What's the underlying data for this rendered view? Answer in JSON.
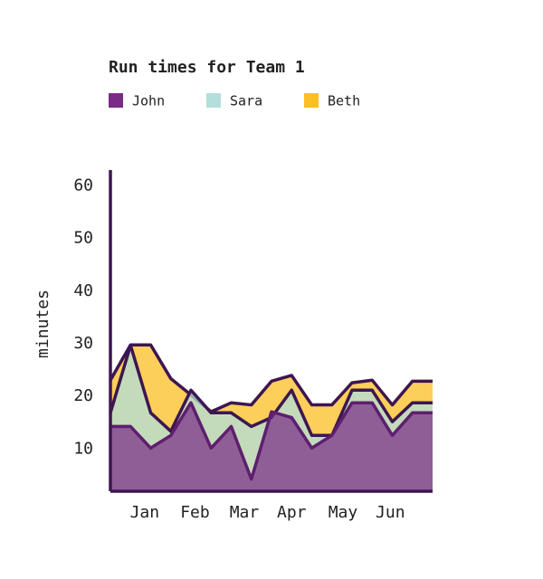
{
  "chart_data": {
    "type": "area",
    "title": "Run times for Team 1",
    "ylabel": "minutes",
    "x": [
      0,
      1,
      2,
      3,
      4,
      5,
      6,
      7,
      8,
      9,
      10,
      11,
      12,
      13,
      14,
      15,
      16
    ],
    "xlim": [
      0,
      16
    ],
    "xticks": [
      {
        "value": 1.7,
        "label": "Jan"
      },
      {
        "value": 4.2,
        "label": "Feb"
      },
      {
        "value": 6.65,
        "label": "Mar"
      },
      {
        "value": 9,
        "label": "Apr"
      },
      {
        "value": 11.55,
        "label": "May"
      },
      {
        "value": 13.9,
        "label": "Jun"
      }
    ],
    "ylim": [
      2,
      63
    ],
    "yticks": [
      10,
      20,
      30,
      40,
      50,
      60
    ],
    "grid": false,
    "series": [
      {
        "name": "John",
        "color": "#7b2a87",
        "values": [
          14.3,
          14.3,
          10.2,
          12.6,
          18.8,
          10.2,
          14.3,
          4.3,
          17.1,
          16,
          10.2,
          12.6,
          18.8,
          18.8,
          12.6,
          16.9,
          16.9
        ]
      },
      {
        "name": "Sara",
        "color": "#b2dfdb",
        "values": [
          16.9,
          29.7,
          16.9,
          13.4,
          21.2,
          16.9,
          16.9,
          14.3,
          16,
          21.2,
          12.6,
          12.6,
          21.2,
          21.2,
          15.2,
          18.8,
          18.8
        ]
      },
      {
        "name": "Beth",
        "color": "#fbbf24",
        "values": [
          23.1,
          29.8,
          29.8,
          23.4,
          20.3,
          17.1,
          18.8,
          18.4,
          22.9,
          24,
          18.4,
          18.4,
          22.6,
          23.1,
          18.4,
          22.9,
          22.9
        ]
      }
    ]
  }
}
